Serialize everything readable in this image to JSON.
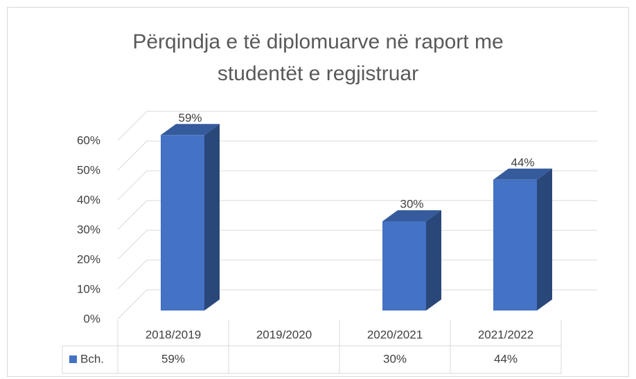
{
  "chart_data": {
    "type": "bar3d",
    "title": "Përqindja e të diplomuarve në raport me studentët e regjistruar",
    "categories": [
      "2018/2019",
      "2019/2020",
      "2020/2021",
      "2021/2022"
    ],
    "series": [
      {
        "name": "Bch.",
        "color": "#4472c4",
        "values": [
          59,
          null,
          30,
          44
        ],
        "value_labels": [
          "59%",
          null,
          "30%",
          "44%"
        ]
      }
    ],
    "ylim": [
      0,
      60
    ],
    "yticks": [
      {
        "value": 0,
        "label": "0%"
      },
      {
        "value": 10,
        "label": "10%"
      },
      {
        "value": 20,
        "label": "20%"
      },
      {
        "value": 30,
        "label": "30%"
      },
      {
        "value": 40,
        "label": "40%"
      },
      {
        "value": 50,
        "label": "50%"
      },
      {
        "value": 60,
        "label": "60%"
      }
    ],
    "grid": true,
    "data_table": true
  }
}
